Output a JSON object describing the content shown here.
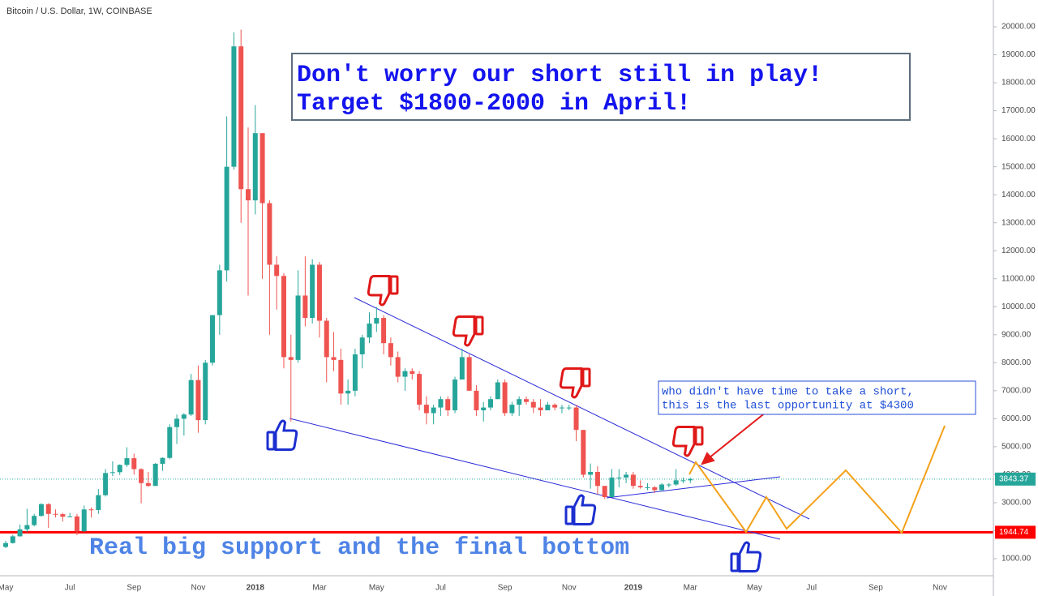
{
  "chart_data": {
    "type": "candlestick",
    "title": "Bitcoin / U.S. Dollar, 1W, COINBASE",
    "annotations": {
      "headline": [
        "Don't worry our short still in play!",
        "Target $1800-2000 in April!"
      ],
      "note": [
        "who didn't have time to take a short,",
        "this is the last opportunity at $4300"
      ],
      "support": "Real big support and the final bottom"
    },
    "up_color": "#26a69a",
    "down_color": "#ef5350",
    "categories": [
      "May",
      null,
      null,
      null,
      null,
      null,
      null,
      null,
      null,
      "Jul",
      null,
      null,
      null,
      null,
      null,
      null,
      null,
      null,
      "Sep",
      null,
      null,
      null,
      null,
      null,
      null,
      null,
      null,
      "Nov",
      null,
      null,
      null,
      null,
      null,
      null,
      null,
      "2018",
      null,
      null,
      null,
      null,
      null,
      null,
      null,
      null,
      "Mar",
      null,
      null,
      null,
      null,
      null,
      null,
      null,
      "May",
      null,
      null,
      null,
      null,
      null,
      null,
      null,
      null,
      "Jul",
      null,
      null,
      null,
      null,
      null,
      null,
      null,
      null,
      "Sep",
      null,
      null,
      null,
      null,
      null,
      null,
      null,
      null,
      "Nov",
      null,
      null,
      null,
      null,
      null,
      null,
      null,
      null,
      "2019",
      null,
      null,
      null,
      null,
      null,
      null,
      null,
      "Mar",
      null,
      null,
      null,
      null,
      null,
      null,
      null,
      null,
      "May",
      null,
      null,
      null,
      null,
      null,
      null,
      null,
      "Jul",
      null,
      null,
      null,
      null,
      null,
      null,
      null,
      null,
      "Sep",
      null,
      null,
      null,
      null,
      null,
      null,
      null,
      null,
      "Nov",
      null,
      null,
      null,
      null,
      null,
      null,
      null
    ],
    "open": [
      1420,
      1560,
      1800,
      2050,
      2200,
      2530,
      2950,
      2600,
      2590,
      2500,
      2510,
      1980,
      2760,
      2740,
      3270,
      4060,
      4090,
      4350,
      4590,
      4200,
      3700,
      3600,
      4390,
      4600,
      5700,
      6000,
      6150,
      7380,
      5950,
      8000,
      9700,
      11300,
      15000,
      19300,
      14200,
      13800,
      16200,
      13700,
      11500,
      11100,
      8200,
      8100,
      10400,
      9600,
      11500,
      9500,
      8200,
      8100,
      6900,
      7000,
      8300,
      8900,
      9400,
      9600,
      8700,
      8200,
      7500,
      7700,
      7600,
      6500,
      6200,
      6400,
      6700,
      6300,
      7400,
      8200,
      7000,
      6300,
      6400,
      6700,
      7300,
      6200,
      6500,
      6700,
      6600,
      6400,
      6300,
      6500,
      6400,
      6400,
      6400,
      5600,
      4000,
      4100,
      3600,
      3200,
      3900,
      3900,
      4000,
      3600,
      3550,
      3550,
      3450,
      3650,
      3650,
      3800,
      3800,
      null,
      null,
      null,
      null,
      null,
      null,
      null,
      null,
      null,
      null,
      null,
      null,
      null,
      null,
      null,
      null,
      null,
      null,
      null,
      null,
      null,
      null,
      null,
      null,
      null,
      null,
      null,
      null,
      null,
      null,
      null,
      null,
      null,
      null,
      null,
      null,
      null,
      null,
      null,
      null,
      null,
      null
    ],
    "high": [
      1640,
      1850,
      2220,
      2780,
      2600,
      2980,
      2980,
      2760,
      2640,
      2640,
      2600,
      2900,
      2830,
      3490,
      4200,
      4480,
      4370,
      4980,
      4750,
      4230,
      4100,
      4420,
      4620,
      5800,
      6150,
      6200,
      7600,
      7900,
      8100,
      9700,
      11500,
      16800,
      19800,
      19900,
      16400,
      17200,
      16200,
      13800,
      11800,
      11200,
      9000,
      11300,
      11800,
      11700,
      11600,
      9600,
      9100,
      8500,
      7400,
      8500,
      9000,
      9800,
      9990,
      9700,
      8900,
      8400,
      7800,
      7800,
      7700,
      6800,
      6500,
      6800,
      6800,
      7500,
      8500,
      8300,
      7200,
      6600,
      6800,
      7400,
      7400,
      6600,
      6800,
      6800,
      6700,
      6700,
      6600,
      6550,
      6500,
      6500,
      6500,
      5600,
      4400,
      4300,
      3600,
      4200,
      4200,
      4100,
      4100,
      3800,
      3700,
      3600,
      3700,
      3700,
      4200,
      3900,
      3900,
      null,
      null,
      null,
      null,
      null,
      null,
      null,
      null,
      null,
      null,
      null,
      null,
      null,
      null,
      null,
      null,
      null,
      null,
      null,
      null,
      null,
      null,
      null,
      null,
      null,
      null,
      null,
      null,
      null,
      null,
      null,
      null,
      null,
      null,
      null,
      null,
      null,
      null,
      null,
      null,
      null,
      null
    ],
    "low": [
      1380,
      1540,
      1790,
      1950,
      2150,
      2500,
      2100,
      2470,
      2330,
      2480,
      1840,
      1960,
      2470,
      2600,
      3220,
      3950,
      3990,
      4280,
      4000,
      2980,
      3570,
      3600,
      4140,
      4550,
      5100,
      5400,
      6100,
      5500,
      5800,
      7900,
      9000,
      10900,
      14900,
      13000,
      10400,
      13300,
      11000,
      9000,
      9900,
      7800,
      5900,
      8000,
      9300,
      9400,
      8900,
      7300,
      7700,
      6500,
      6500,
      6800,
      7800,
      8700,
      9100,
      8300,
      7900,
      7300,
      7000,
      7400,
      6300,
      5800,
      5800,
      6100,
      6100,
      6200,
      7400,
      7000,
      6100,
      5900,
      6300,
      6700,
      6100,
      6100,
      6100,
      6500,
      6200,
      6100,
      6300,
      6300,
      6200,
      6300,
      5200,
      3900,
      3500,
      3300,
      3130,
      3200,
      3550,
      3700,
      3500,
      3500,
      3450,
      3350,
      3400,
      3550,
      3600,
      3700,
      3700,
      null,
      null,
      null,
      null,
      null,
      null,
      null,
      null,
      null,
      null,
      null,
      null,
      null,
      null,
      null,
      null,
      null,
      null,
      null,
      null,
      null,
      null,
      null,
      null,
      null,
      null,
      null,
      null,
      null,
      null,
      null,
      null,
      null,
      null,
      null,
      null,
      null,
      null,
      null,
      null,
      null,
      null
    ],
    "close": [
      1560,
      1800,
      2050,
      2200,
      2530,
      2950,
      2600,
      2590,
      2500,
      2510,
      1980,
      2760,
      2740,
      3270,
      4060,
      4090,
      4350,
      4590,
      4200,
      3700,
      3600,
      4390,
      4600,
      5700,
      6000,
      6150,
      7380,
      5950,
      8000,
      9700,
      11300,
      15000,
      19300,
      14200,
      13800,
      16200,
      13700,
      11500,
      11100,
      8200,
      8100,
      10400,
      9600,
      11500,
      9500,
      8200,
      8100,
      6900,
      7000,
      8300,
      8900,
      9400,
      9600,
      8700,
      8200,
      7500,
      7700,
      7600,
      6500,
      6200,
      6400,
      6700,
      6300,
      7400,
      8200,
      7000,
      6300,
      6400,
      6700,
      7300,
      6200,
      6500,
      6700,
      6600,
      6400,
      6300,
      6500,
      6400,
      6400,
      6400,
      5600,
      4000,
      4100,
      3600,
      3200,
      3900,
      3900,
      4000,
      3600,
      3550,
      3550,
      3450,
      3650,
      3650,
      3800,
      3800,
      3843.37,
      null,
      null,
      null,
      null,
      null,
      null,
      null,
      null,
      null,
      null,
      null,
      null,
      null,
      null,
      null,
      null,
      null,
      null,
      null,
      null,
      null,
      null,
      null,
      null,
      null,
      null,
      null,
      null,
      null,
      null,
      null,
      null,
      null,
      null,
      null,
      null,
      null,
      null,
      null,
      null,
      null,
      null
    ],
    "price_lines": [
      {
        "value": 3843.37,
        "color": "#26a69a",
        "style": "dotted"
      },
      {
        "value": 1944.74,
        "color": "#ff0000",
        "style": "solid"
      }
    ],
    "ylim": [
      392,
      20956
    ],
    "yticks": [
      {
        "value": 1000,
        "label": "1000.00"
      },
      {
        "value": 2000,
        "label": "2000.00"
      },
      {
        "value": 3000,
        "label": "3000.00"
      },
      {
        "value": 4000,
        "label": "4000.00"
      },
      {
        "value": 5000,
        "label": "5000.00"
      },
      {
        "value": 6000,
        "label": "6000.00"
      },
      {
        "value": 7000,
        "label": "7000.00"
      },
      {
        "value": 8000,
        "label": "8000.00"
      },
      {
        "value": 9000,
        "label": "9000.00"
      },
      {
        "value": 10000,
        "label": "10000.00"
      },
      {
        "value": 11000,
        "label": "11000.00"
      },
      {
        "value": 12000,
        "label": "12000.00"
      },
      {
        "value": 13000,
        "label": "13000.00"
      },
      {
        "value": 14000,
        "label": "14000.00"
      },
      {
        "value": 15000,
        "label": "15000.00"
      },
      {
        "value": 16000,
        "label": "16000.00"
      },
      {
        "value": 17000,
        "label": "17000.00"
      },
      {
        "value": 18000,
        "label": "18000.00"
      },
      {
        "value": 19000,
        "label": "19000.00"
      },
      {
        "value": 20000,
        "label": "20000.00"
      }
    ],
    "grid": false
  }
}
